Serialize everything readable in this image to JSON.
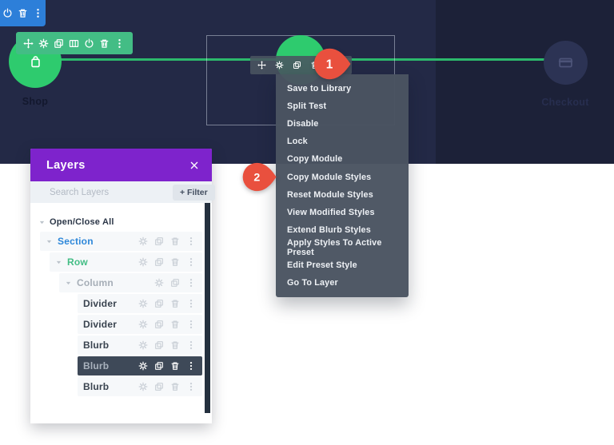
{
  "colors": {
    "canvas_navy": "#232946",
    "canvas_navy_dark": "#1c2138",
    "accent_green": "#2ecb6e",
    "line_green": "#2cb96c",
    "section_blue": "#2d7fd9",
    "row_green": "#43bd85",
    "module_gray": "#4a5461",
    "panel_purple": "#7e23cc",
    "marker_red": "#e9503e",
    "selected_row_bg": "#3e4958"
  },
  "section_toolbar": {
    "icons": [
      "power",
      "trash",
      "dots"
    ]
  },
  "row_toolbar": {
    "icons": [
      "move",
      "gear",
      "duplicate",
      "columns",
      "power",
      "trash",
      "dots"
    ]
  },
  "module_toolbar": {
    "icons": [
      "move",
      "gear",
      "duplicate",
      "trash"
    ],
    "menu_icon": "dots"
  },
  "timeline": {
    "shop_label": "Shop",
    "checkout_label": "Checkout",
    "shop_icon": "bag",
    "checkout_icon": "card"
  },
  "markers": {
    "step1": "1",
    "step2": "2"
  },
  "context_menu": {
    "items": [
      "Save to Library",
      "Split Test",
      "Disable",
      "Lock",
      "Copy Module",
      "Copy Module Styles",
      "Reset Module Styles",
      "View Modified Styles",
      "Extend Blurb Styles",
      "Apply Styles To Active Preset",
      "Edit Preset Style",
      "Go To Layer"
    ]
  },
  "layers_panel": {
    "title": "Layers",
    "search_placeholder": "Search Layers",
    "filter_button": "+ Filter",
    "open_close_all": "Open/Close All",
    "rows": [
      {
        "label": "Section",
        "kind": "section",
        "indent": 0,
        "caret": true,
        "selected": false,
        "icons": [
          "gear",
          "duplicate",
          "trash",
          "dots"
        ]
      },
      {
        "label": "Row",
        "kind": "row",
        "indent": 1,
        "caret": true,
        "selected": false,
        "icons": [
          "gear",
          "duplicate",
          "trash",
          "dots"
        ]
      },
      {
        "label": "Column",
        "kind": "column",
        "indent": 2,
        "caret": true,
        "selected": false,
        "icons": [
          "gear",
          "duplicate",
          "dots"
        ]
      },
      {
        "label": "Divider",
        "kind": "module",
        "indent": 3,
        "caret": false,
        "selected": false,
        "icons": [
          "gear",
          "duplicate",
          "trash",
          "dots"
        ]
      },
      {
        "label": "Divider",
        "kind": "module",
        "indent": 3,
        "caret": false,
        "selected": false,
        "icons": [
          "gear",
          "duplicate",
          "trash",
          "dots"
        ]
      },
      {
        "label": "Blurb",
        "kind": "module",
        "indent": 3,
        "caret": false,
        "selected": false,
        "icons": [
          "gear",
          "duplicate",
          "trash",
          "dots"
        ]
      },
      {
        "label": "Blurb",
        "kind": "module",
        "indent": 3,
        "caret": false,
        "selected": true,
        "icons": [
          "gear",
          "duplicate",
          "trash",
          "dots"
        ]
      },
      {
        "label": "Blurb",
        "kind": "module",
        "indent": 3,
        "caret": false,
        "selected": false,
        "icons": [
          "gear",
          "duplicate",
          "trash",
          "dots"
        ]
      }
    ]
  }
}
